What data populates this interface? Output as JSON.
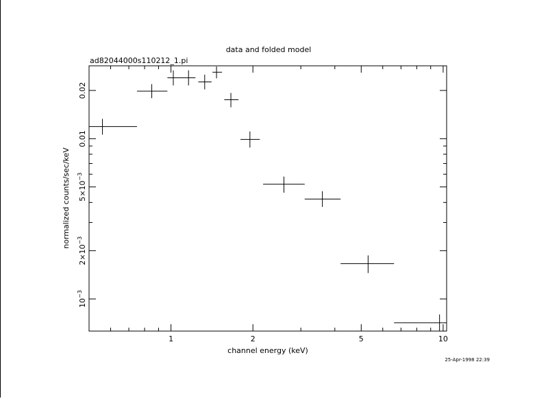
{
  "chart_data": {
    "type": "scatter",
    "title": "data and folded model",
    "subtitle": "ad82044000s110212_1.pi",
    "xlabel": "channel energy (keV)",
    "ylabel": "normalized counts/sec/keV",
    "x_scale": "log",
    "y_scale": "log",
    "xlim": [
      0.5,
      10.3
    ],
    "ylim": [
      0.00063,
      0.0285
    ],
    "x_ticks": [
      {
        "value": 1,
        "label": "1"
      },
      {
        "value": 2,
        "label": "2"
      },
      {
        "value": 5,
        "label": "5"
      },
      {
        "value": 10,
        "label": "10"
      }
    ],
    "y_ticks": [
      {
        "value": 0.001,
        "base": "10",
        "exp": "−3"
      },
      {
        "value": 0.002,
        "base": "2×10",
        "exp": "−3"
      },
      {
        "value": 0.005,
        "base": "5×10",
        "exp": "−3"
      },
      {
        "value": 0.01,
        "base": "0.01",
        "exp": ""
      },
      {
        "value": 0.02,
        "base": "0.02",
        "exp": ""
      }
    ],
    "series": [
      {
        "points": [
          {
            "x": 0.56,
            "xlo": 0.5,
            "xhi": 0.75,
            "y": 0.0119,
            "ylo": 0.0106,
            "yhi": 0.0133
          },
          {
            "x": 0.85,
            "xlo": 0.75,
            "xhi": 0.97,
            "y": 0.0198,
            "ylo": 0.0179,
            "yhi": 0.0219
          },
          {
            "x": 1.02,
            "xlo": 0.97,
            "xhi": 1.1,
            "y": 0.024,
            "ylo": 0.0215,
            "yhi": 0.0267
          },
          {
            "x": 1.16,
            "xlo": 1.1,
            "xhi": 1.23,
            "y": 0.024,
            "ylo": 0.0215,
            "yhi": 0.0267
          },
          {
            "x": 1.33,
            "xlo": 1.26,
            "xhi": 1.41,
            "y": 0.0226,
            "ylo": 0.0203,
            "yhi": 0.0251
          },
          {
            "x": 1.47,
            "xlo": 1.42,
            "xhi": 1.54,
            "y": 0.026,
            "ylo": 0.0238,
            "yhi": 0.0282
          },
          {
            "x": 1.66,
            "xlo": 1.57,
            "xhi": 1.77,
            "y": 0.0175,
            "ylo": 0.0157,
            "yhi": 0.0193
          },
          {
            "x": 1.95,
            "xlo": 1.8,
            "xhi": 2.12,
            "y": 0.0099,
            "ylo": 0.0088,
            "yhi": 0.0111
          },
          {
            "x": 2.6,
            "xlo": 2.18,
            "xhi": 3.1,
            "y": 0.0052,
            "ylo": 0.0046,
            "yhi": 0.0058
          },
          {
            "x": 3.6,
            "xlo": 3.1,
            "xhi": 4.2,
            "y": 0.0042,
            "ylo": 0.00375,
            "yhi": 0.0047
          },
          {
            "x": 5.3,
            "xlo": 4.2,
            "xhi": 6.6,
            "y": 0.00166,
            "ylo": 0.00145,
            "yhi": 0.00187
          },
          {
            "x": 9.7,
            "xlo": 6.6,
            "xhi": 10.3,
            "y": 0.00071,
            "ylo": 0.00063,
            "yhi": 0.0008
          }
        ]
      }
    ]
  },
  "timestamp": "25-Apr-1998 22:39"
}
